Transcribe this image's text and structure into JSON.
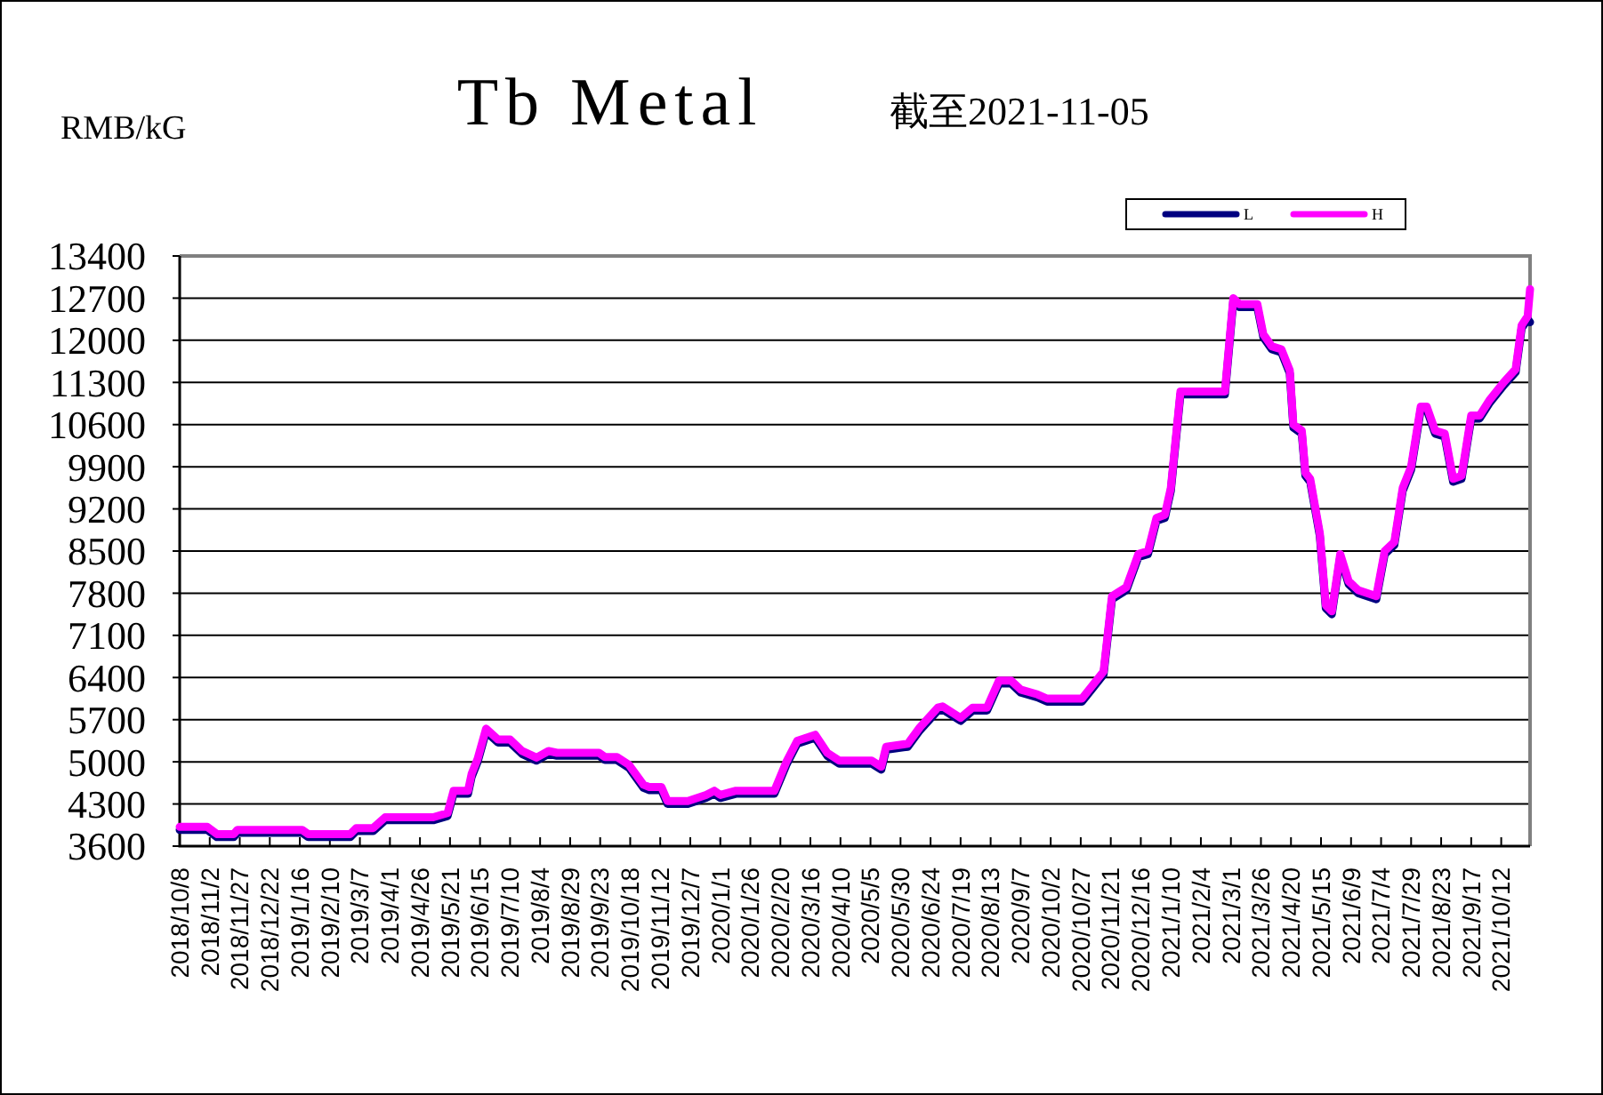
{
  "chart_data": {
    "type": "line",
    "title": "Tb Metal",
    "subtitle": "截至2021-11-05",
    "ylabel": "RMB/kG",
    "x": [
      "2018-10-08",
      "2018-10-31",
      "2018-11-08",
      "2018-11-22",
      "2018-11-25",
      "2019-01-18",
      "2019-01-23",
      "2019-02-27",
      "2019-03-04",
      "2019-03-18",
      "2019-03-28",
      "2019-05-07",
      "2019-05-19",
      "2019-05-24",
      "2019-06-05",
      "2019-06-08",
      "2019-06-13",
      "2019-06-20",
      "2019-06-30",
      "2019-07-10",
      "2019-07-20",
      "2019-08-01",
      "2019-08-11",
      "2019-08-18",
      "2019-09-22",
      "2019-09-27",
      "2019-10-07",
      "2019-10-17",
      "2019-10-29",
      "2019-11-03",
      "2019-11-13",
      "2019-11-18",
      "2019-12-05",
      "2019-12-20",
      "2019-12-27",
      "2020-01-01",
      "2020-01-14",
      "2020-02-15",
      "2020-02-25",
      "2020-03-05",
      "2020-03-20",
      "2020-03-30",
      "2020-04-09",
      "2020-05-06",
      "2020-05-14",
      "2020-05-18",
      "2020-06-05",
      "2020-06-15",
      "2020-06-30",
      "2020-07-04",
      "2020-07-19",
      "2020-07-29",
      "2020-08-10",
      "2020-08-20",
      "2020-08-30",
      "2020-09-07",
      "2020-09-21",
      "2020-09-29",
      "2020-10-28",
      "2020-11-05",
      "2020-11-15",
      "2020-11-22",
      "2020-12-04",
      "2020-12-14",
      "2020-12-22",
      "2020-12-29",
      "2021-01-05",
      "2021-01-10",
      "2021-01-18",
      "2021-02-24",
      "2021-03-03",
      "2021-03-08",
      "2021-03-23",
      "2021-03-28",
      "2021-04-04",
      "2021-04-12",
      "2021-04-19",
      "2021-04-22",
      "2021-04-29",
      "2021-05-02",
      "2021-05-06",
      "2021-05-14",
      "2021-05-19",
      "2021-05-24",
      "2021-05-31",
      "2021-06-07",
      "2021-06-15",
      "2021-06-30",
      "2021-07-07",
      "2021-07-15",
      "2021-07-22",
      "2021-07-29",
      "2021-08-06",
      "2021-08-11",
      "2021-08-18",
      "2021-08-26",
      "2021-09-02",
      "2021-09-09",
      "2021-09-17",
      "2021-09-24",
      "2021-10-02",
      "2021-10-14",
      "2021-10-24",
      "2021-10-29",
      "2021-11-03",
      "2021-11-05"
    ],
    "series": [
      {
        "name": "L",
        "color": "#000080",
        "values": [
          3870,
          3870,
          3750,
          3750,
          3820,
          3820,
          3750,
          3750,
          3850,
          3850,
          4030,
          4030,
          4100,
          4470,
          4470,
          4750,
          5000,
          5500,
          5320,
          5320,
          5130,
          5020,
          5130,
          5100,
          5100,
          5030,
          5030,
          4900,
          4570,
          4530,
          4530,
          4300,
          4300,
          4400,
          4470,
          4400,
          4470,
          4470,
          4950,
          5300,
          5400,
          5100,
          4970,
          4970,
          4870,
          5200,
          5250,
          5520,
          5850,
          5870,
          5680,
          5850,
          5850,
          6300,
          6300,
          6150,
          6070,
          6000,
          6000,
          6200,
          6450,
          7700,
          7850,
          8400,
          8450,
          9000,
          9050,
          9500,
          11100,
          11100,
          12650,
          12550,
          12550,
          12050,
          11850,
          11800,
          11450,
          10550,
          10450,
          9750,
          9650,
          8750,
          7550,
          7450,
          8400,
          7950,
          7800,
          7700,
          8450,
          8600,
          9500,
          9850,
          10850,
          10850,
          10450,
          10400,
          9650,
          9700,
          10700,
          10700,
          10950,
          11250,
          11470,
          12200,
          12350,
          12300
        ]
      },
      {
        "name": "H",
        "color": "#ff00ff",
        "values": [
          3920,
          3920,
          3800,
          3800,
          3870,
          3870,
          3800,
          3800,
          3900,
          3900,
          4080,
          4080,
          4150,
          4520,
          4520,
          4800,
          5050,
          5550,
          5370,
          5370,
          5180,
          5070,
          5180,
          5150,
          5150,
          5080,
          5080,
          4950,
          4620,
          4580,
          4580,
          4350,
          4350,
          4450,
          4520,
          4450,
          4520,
          4520,
          5000,
          5350,
          5450,
          5150,
          5020,
          5020,
          4920,
          5250,
          5300,
          5570,
          5900,
          5920,
          5730,
          5900,
          5900,
          6350,
          6350,
          6200,
          6120,
          6050,
          6050,
          6250,
          6500,
          7750,
          7900,
          8450,
          8500,
          9050,
          9100,
          9550,
          11150,
          11150,
          12700,
          12600,
          12600,
          12100,
          11900,
          11850,
          11500,
          10600,
          10500,
          9800,
          9700,
          8800,
          7600,
          7500,
          8450,
          8000,
          7850,
          7750,
          8500,
          8650,
          9550,
          9900,
          10900,
          10900,
          10500,
          10450,
          9700,
          9750,
          10750,
          10750,
          11000,
          11300,
          11520,
          12250,
          12400,
          12850
        ]
      }
    ],
    "xlim": [
      "2018-10-08",
      "2021-11-05"
    ],
    "xticks": [
      {
        "value": "2018-10-08",
        "label": "2018/10/8"
      },
      {
        "value": "2018-11-02",
        "label": "2018/11/2"
      },
      {
        "value": "2018-11-27",
        "label": "2018/11/27"
      },
      {
        "value": "2018-12-22",
        "label": "2018/12/22"
      },
      {
        "value": "2019-01-16",
        "label": "2019/1/16"
      },
      {
        "value": "2019-02-10",
        "label": "2019/2/10"
      },
      {
        "value": "2019-03-07",
        "label": "2019/3/7"
      },
      {
        "value": "2019-04-01",
        "label": "2019/4/1"
      },
      {
        "value": "2019-04-26",
        "label": "2019/4/26"
      },
      {
        "value": "2019-05-21",
        "label": "2019/5/21"
      },
      {
        "value": "2019-06-15",
        "label": "2019/6/15"
      },
      {
        "value": "2019-07-10",
        "label": "2019/7/10"
      },
      {
        "value": "2019-08-04",
        "label": "2019/8/4"
      },
      {
        "value": "2019-08-29",
        "label": "2019/8/29"
      },
      {
        "value": "2019-09-23",
        "label": "2019/9/23"
      },
      {
        "value": "2019-10-18",
        "label": "2019/10/18"
      },
      {
        "value": "2019-11-12",
        "label": "2019/11/12"
      },
      {
        "value": "2019-12-07",
        "label": "2019/12/7"
      },
      {
        "value": "2020-01-01",
        "label": "2020/1/1"
      },
      {
        "value": "2020-01-26",
        "label": "2020/1/26"
      },
      {
        "value": "2020-02-20",
        "label": "2020/2/20"
      },
      {
        "value": "2020-03-16",
        "label": "2020/3/16"
      },
      {
        "value": "2020-04-10",
        "label": "2020/4/10"
      },
      {
        "value": "2020-05-05",
        "label": "2020/5/5"
      },
      {
        "value": "2020-05-30",
        "label": "2020/5/30"
      },
      {
        "value": "2020-06-24",
        "label": "2020/6/24"
      },
      {
        "value": "2020-07-19",
        "label": "2020/7/19"
      },
      {
        "value": "2020-08-13",
        "label": "2020/8/13"
      },
      {
        "value": "2020-09-07",
        "label": "2020/9/7"
      },
      {
        "value": "2020-10-02",
        "label": "2020/10/2"
      },
      {
        "value": "2020-10-27",
        "label": "2020/10/27"
      },
      {
        "value": "2020-11-21",
        "label": "2020/11/21"
      },
      {
        "value": "2020-12-16",
        "label": "2020/12/16"
      },
      {
        "value": "2021-01-10",
        "label": "2021/1/10"
      },
      {
        "value": "2021-02-04",
        "label": "2021/2/4"
      },
      {
        "value": "2021-03-01",
        "label": "2021/3/1"
      },
      {
        "value": "2021-03-26",
        "label": "2021/3/26"
      },
      {
        "value": "2021-04-20",
        "label": "2021/4/20"
      },
      {
        "value": "2021-05-15",
        "label": "2021/5/15"
      },
      {
        "value": "2021-06-09",
        "label": "2021/6/9"
      },
      {
        "value": "2021-07-04",
        "label": "2021/7/4"
      },
      {
        "value": "2021-07-29",
        "label": "2021/7/29"
      },
      {
        "value": "2021-08-23",
        "label": "2021/8/23"
      },
      {
        "value": "2021-09-17",
        "label": "2021/9/17"
      },
      {
        "value": "2021-10-12",
        "label": "2021/10/12"
      }
    ],
    "ylim": [
      3600,
      13400
    ],
    "yticks": [
      3600,
      4300,
      5000,
      5700,
      6400,
      7100,
      7800,
      8500,
      9200,
      9900,
      10600,
      11300,
      12000,
      12700,
      13400
    ],
    "grid": "y",
    "legend": "top right",
    "line_style": "solid",
    "marker": "none"
  }
}
